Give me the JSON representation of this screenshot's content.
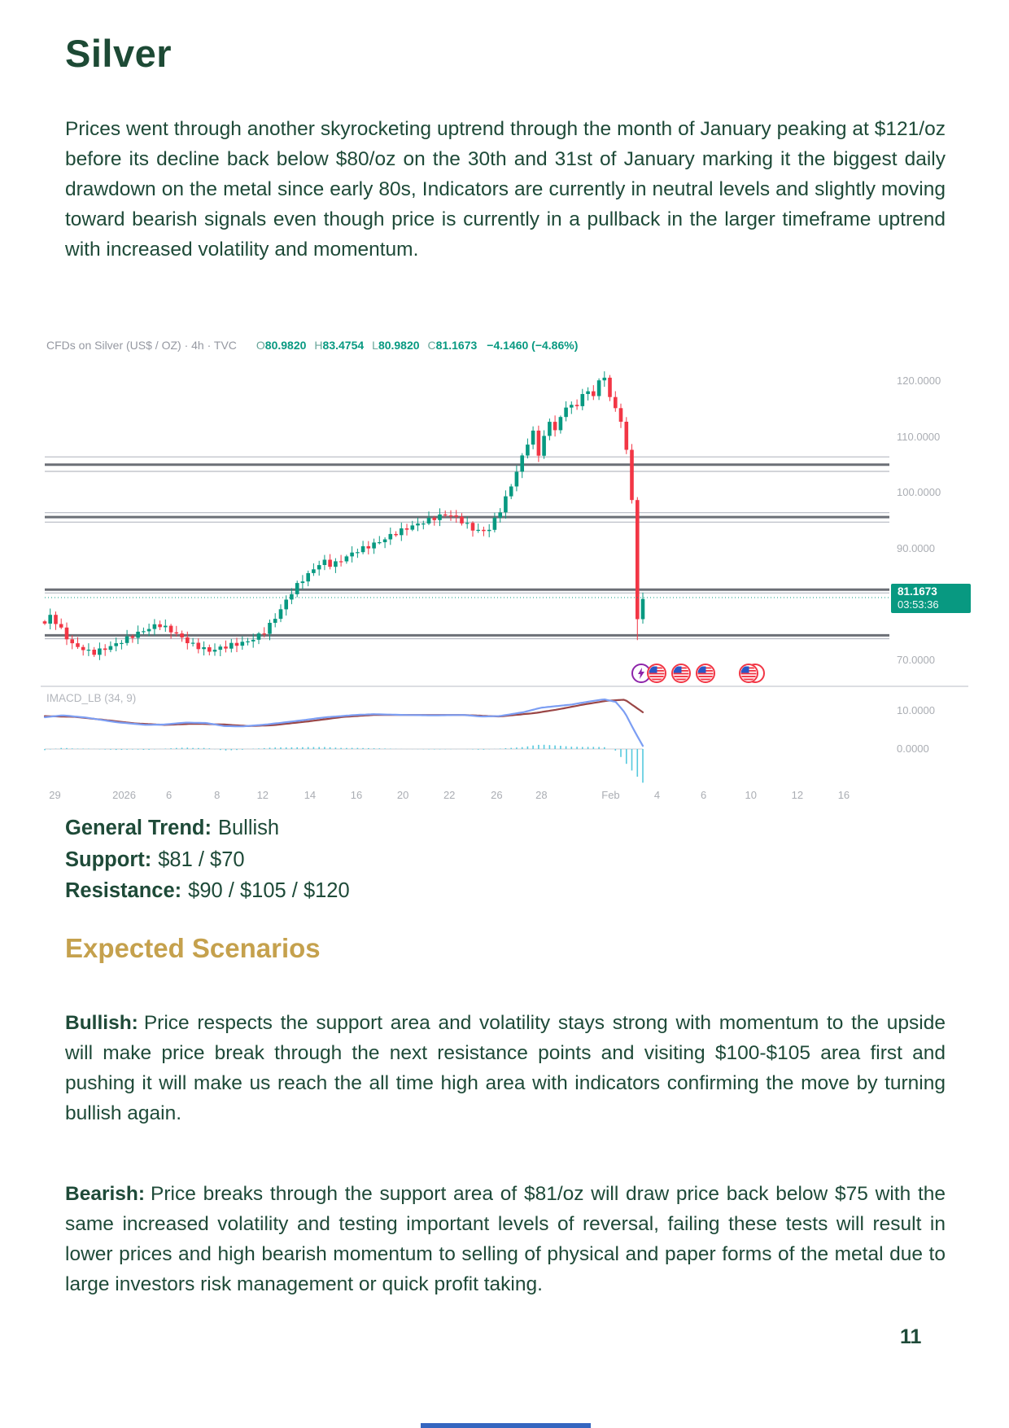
{
  "title": "Silver",
  "intro": "Prices went through another skyrocketing uptrend through the month of January peaking at $121/oz before its decline back below $80/oz on the 30th and 31st of January marking it the biggest daily drawdown on the metal since early 80s, Indicators are currently in neutral levels and slightly moving toward bearish signals even though price is currently in a pullback in the larger timeframe uptrend with increased volatility and momentum.",
  "chart": {
    "header": {
      "symbol": "CFDs on Silver (US$ / OZ) · 4h · TVC",
      "ohlc": [
        {
          "k": "O",
          "v": "80.9820"
        },
        {
          "k": "H",
          "v": "83.4754"
        },
        {
          "k": "L",
          "v": "80.9820"
        },
        {
          "k": "C",
          "v": "81.1673"
        }
      ],
      "change": "−4.1460 (−4.86%)"
    }
  },
  "chart_data": {
    "type": "candlestick",
    "title": "CFDs on Silver (US$ / OZ)",
    "timeframe": "4h",
    "exchange": "TVC",
    "current": {
      "open": 80.982,
      "high": 83.4754,
      "low": 80.982,
      "close": 81.1673,
      "change": "−4.1460",
      "change_pct": "−4.86%"
    },
    "current_price": 81.1673,
    "last_price_badge": {
      "price": "81.1673",
      "countdown": "03:53:36"
    },
    "price_axis": [
      {
        "label": "120.0000",
        "value": 120
      },
      {
        "label": "110.0000",
        "value": 110
      },
      {
        "label": "100.0000",
        "value": 100
      },
      {
        "label": "90.0000",
        "value": 90
      },
      {
        "label": "70.0000",
        "value": 70
      }
    ],
    "macd_axis": [
      {
        "label": "10.0000",
        "value": 10
      },
      {
        "label": "0.0000",
        "value": 0
      }
    ],
    "x_ticks": [
      {
        "label": "29",
        "f": 0.012
      },
      {
        "label": "2026",
        "f": 0.094
      },
      {
        "label": "6",
        "f": 0.147
      },
      {
        "label": "8",
        "f": 0.204
      },
      {
        "label": "12",
        "f": 0.258
      },
      {
        "label": "14",
        "f": 0.314
      },
      {
        "label": "16",
        "f": 0.369
      },
      {
        "label": "20",
        "f": 0.424
      },
      {
        "label": "22",
        "f": 0.479
      },
      {
        "label": "26",
        "f": 0.535
      },
      {
        "label": "28",
        "f": 0.588
      },
      {
        "label": "Feb",
        "f": 0.67
      },
      {
        "label": "4",
        "f": 0.725
      },
      {
        "label": "6",
        "f": 0.78
      },
      {
        "label": "10",
        "f": 0.836
      },
      {
        "label": "12",
        "f": 0.891
      },
      {
        "label": "16",
        "f": 0.946
      }
    ],
    "levels": [
      {
        "price": 106.4,
        "style": "thin"
      },
      {
        "price": 105.0,
        "style": "thick"
      },
      {
        "price": 103.8,
        "style": "thin"
      },
      {
        "price": 96.4,
        "style": "thin"
      },
      {
        "price": 95.6,
        "style": "thick"
      },
      {
        "price": 94.7,
        "style": "thin"
      },
      {
        "price": 82.6,
        "style": "thick"
      },
      {
        "price": 82.0,
        "style": "thin"
      },
      {
        "price": 74.4,
        "style": "thick"
      },
      {
        "price": 73.8,
        "style": "thin"
      }
    ],
    "price_path": [
      [
        0,
        76.5
      ],
      [
        0.01,
        78.0
      ],
      [
        0.045,
        72.8
      ],
      [
        0.08,
        71.2
      ],
      [
        0.115,
        72.6
      ],
      [
        0.15,
        74.5
      ],
      [
        0.19,
        76.4
      ],
      [
        0.215,
        75.0
      ],
      [
        0.245,
        72.8
      ],
      [
        0.275,
        71.6
      ],
      [
        0.31,
        72.6
      ],
      [
        0.34,
        73.3
      ],
      [
        0.365,
        74.8
      ],
      [
        0.385,
        77.5
      ],
      [
        0.4,
        80.0
      ],
      [
        0.412,
        82.0
      ],
      [
        0.425,
        83.8
      ],
      [
        0.445,
        85.8
      ],
      [
        0.465,
        87.8
      ],
      [
        0.48,
        86.9
      ],
      [
        0.5,
        88.2
      ],
      [
        0.52,
        89.5
      ],
      [
        0.54,
        90.3
      ],
      [
        0.56,
        91.2
      ],
      [
        0.58,
        92.4
      ],
      [
        0.605,
        93.6
      ],
      [
        0.63,
        94.6
      ],
      [
        0.655,
        95.6
      ],
      [
        0.675,
        96.2
      ],
      [
        0.695,
        95.0
      ],
      [
        0.72,
        93.2
      ],
      [
        0.74,
        93.0
      ],
      [
        0.76,
        96.5
      ],
      [
        0.775,
        100.0
      ],
      [
        0.79,
        104.0
      ],
      [
        0.805,
        108.5
      ],
      [
        0.818,
        111.0
      ],
      [
        0.826,
        106.8
      ],
      [
        0.835,
        110.0
      ],
      [
        0.845,
        113.0
      ],
      [
        0.855,
        111.0
      ],
      [
        0.865,
        114.0
      ],
      [
        0.875,
        116.5
      ],
      [
        0.885,
        114.5
      ],
      [
        0.895,
        117.0
      ],
      [
        0.905,
        118.5
      ],
      [
        0.915,
        117.0
      ],
      [
        0.925,
        119.5
      ],
      [
        0.936,
        121.0
      ],
      [
        0.944,
        117.5
      ],
      [
        0.95,
        113.5
      ],
      [
        0.956,
        116.0
      ],
      [
        0.963,
        113.0
      ],
      [
        0.972,
        107.8
      ],
      [
        0.9817,
        99.0
      ],
      [
        0.9908,
        76.9
      ],
      [
        1.0,
        81.2
      ]
    ],
    "macd": {
      "label": "IMACD_LB (34, 9)",
      "blue": [
        [
          0,
          8.3
        ],
        [
          0.03,
          8.8
        ],
        [
          0.07,
          8.2
        ],
        [
          0.12,
          7.0
        ],
        [
          0.17,
          6.3
        ],
        [
          0.2,
          6.4
        ],
        [
          0.235,
          6.9
        ],
        [
          0.27,
          6.8
        ],
        [
          0.3,
          6.0
        ],
        [
          0.33,
          5.9
        ],
        [
          0.37,
          6.4
        ],
        [
          0.42,
          7.3
        ],
        [
          0.47,
          8.3
        ],
        [
          0.52,
          8.9
        ],
        [
          0.55,
          9.1
        ],
        [
          0.6,
          8.9
        ],
        [
          0.65,
          8.8
        ],
        [
          0.7,
          8.9
        ],
        [
          0.73,
          8.5
        ],
        [
          0.76,
          8.6
        ],
        [
          0.8,
          9.6
        ],
        [
          0.83,
          10.8
        ],
        [
          0.855,
          11.2
        ],
        [
          0.88,
          11.6
        ],
        [
          0.91,
          12.4
        ],
        [
          0.935,
          13.0
        ],
        [
          0.955,
          12.3
        ],
        [
          0.97,
          9.5
        ],
        [
          0.985,
          5.0
        ],
        [
          1.0,
          0.8
        ]
      ],
      "red": [
        [
          0,
          8.6
        ],
        [
          0.05,
          8.4
        ],
        [
          0.1,
          7.6
        ],
        [
          0.15,
          6.7
        ],
        [
          0.2,
          6.3
        ],
        [
          0.25,
          6.6
        ],
        [
          0.3,
          6.4
        ],
        [
          0.34,
          6.0
        ],
        [
          0.38,
          6.2
        ],
        [
          0.44,
          7.2
        ],
        [
          0.5,
          8.4
        ],
        [
          0.55,
          8.9
        ],
        [
          0.62,
          8.9
        ],
        [
          0.7,
          8.9
        ],
        [
          0.76,
          8.5
        ],
        [
          0.82,
          9.4
        ],
        [
          0.86,
          10.4
        ],
        [
          0.9,
          11.6
        ],
        [
          0.94,
          12.6
        ],
        [
          0.97,
          12.9
        ],
        [
          1.0,
          9.6
        ]
      ]
    },
    "events": [
      {
        "type": "lightning",
        "x": 738
      },
      {
        "type": "flag",
        "x": 757
      },
      {
        "type": "flag",
        "x": 787
      },
      {
        "type": "flag",
        "x": 817
      },
      {
        "type": "flag-double",
        "x": 874
      }
    ],
    "colors": {
      "up": "#089981",
      "down": "#F23645",
      "macd_blue": "#7C9EF3",
      "macd_signal": "#9A4646",
      "histogram": "#55C9DE",
      "badge": "#089981"
    }
  },
  "trend": [
    {
      "label": "General Trend:",
      "value": "Bullish"
    },
    {
      "label": "Support:",
      "value": "$81 / $70"
    },
    {
      "label": "Resistance:",
      "value": "$90 / $105 / $120"
    }
  ],
  "scenarios": {
    "heading": "Expected Scenarios",
    "bullish": {
      "label": "Bullish:",
      "text": "Price respects the support area and volatility stays strong with momentum to the upside will make price break through the next resistance points and visiting $100-$105 area first and pushing it will make us reach the all time high area with indicators confirming the move by turning bullish again."
    },
    "bearish": {
      "label": "Bearish:",
      "text": "Price breaks through the support area of $81/oz will draw price back below $75 with the same increased volatility and testing important levels of reversal, failing these tests will result in lower prices and high bearish momentum to selling of physical and paper forms of the metal due to large investors risk management or quick profit taking."
    }
  },
  "page": {
    "number": "11"
  }
}
